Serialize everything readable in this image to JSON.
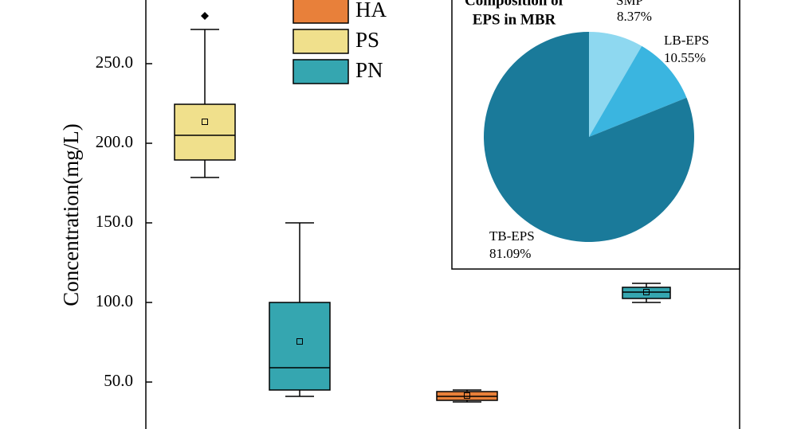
{
  "chart_data": {
    "type": "box",
    "y_label": "Concentration(mg/L)",
    "ylim": [
      20.5,
      290
    ],
    "yticks": [
      {
        "value": 50,
        "label": "50.0"
      },
      {
        "value": 100,
        "label": "100.0"
      },
      {
        "value": 150,
        "label": "150.0"
      },
      {
        "value": 200,
        "label": "200.0"
      },
      {
        "value": 250,
        "label": "250.0"
      }
    ],
    "categories": [
      null,
      null,
      null,
      null
    ],
    "boxes": [
      {
        "color": "#f0e08c",
        "whisker_low": 178.5,
        "q1": 189.5,
        "median": 205,
        "q3": 224.5,
        "whisker_high": 271.5,
        "mean": 213.5,
        "outliers": [
          280
        ]
      },
      {
        "color": "#35a6b0",
        "whisker_low": 41,
        "q1": 45,
        "median": 59,
        "q3": 100,
        "whisker_high": 150,
        "mean": 75.5,
        "outliers": []
      },
      {
        "color": "#e8803a",
        "whisker_low": 37.5,
        "q1": 38.5,
        "median": 41,
        "q3": 44,
        "whisker_high": 45,
        "mean": 41.5,
        "outliers": []
      },
      {
        "color": "#35a6b0",
        "whisker_low": 100,
        "q1": 102.5,
        "median": 106.5,
        "q3": 109.5,
        "whisker_high": 112,
        "mean": 106.5,
        "outliers": []
      }
    ],
    "legend": [
      {
        "name": "HA",
        "color": "#e8803a"
      },
      {
        "name": "PS",
        "color": "#f0e08c"
      },
      {
        "name": "PN",
        "color": "#35a6b0"
      }
    ],
    "inset": {
      "type": "pie",
      "title_lines": [
        "Composition of",
        "EPS in MBR"
      ],
      "categories": [
        "SMP",
        "LB-EPS",
        "TB-EPS"
      ],
      "values": [
        8.37,
        10.55,
        81.09
      ],
      "value_labels": [
        "8.37%",
        "10.55%",
        "81.09%"
      ],
      "colors": [
        "#8ed8f0",
        "#3ab5e0",
        "#1a7a9a"
      ]
    }
  }
}
